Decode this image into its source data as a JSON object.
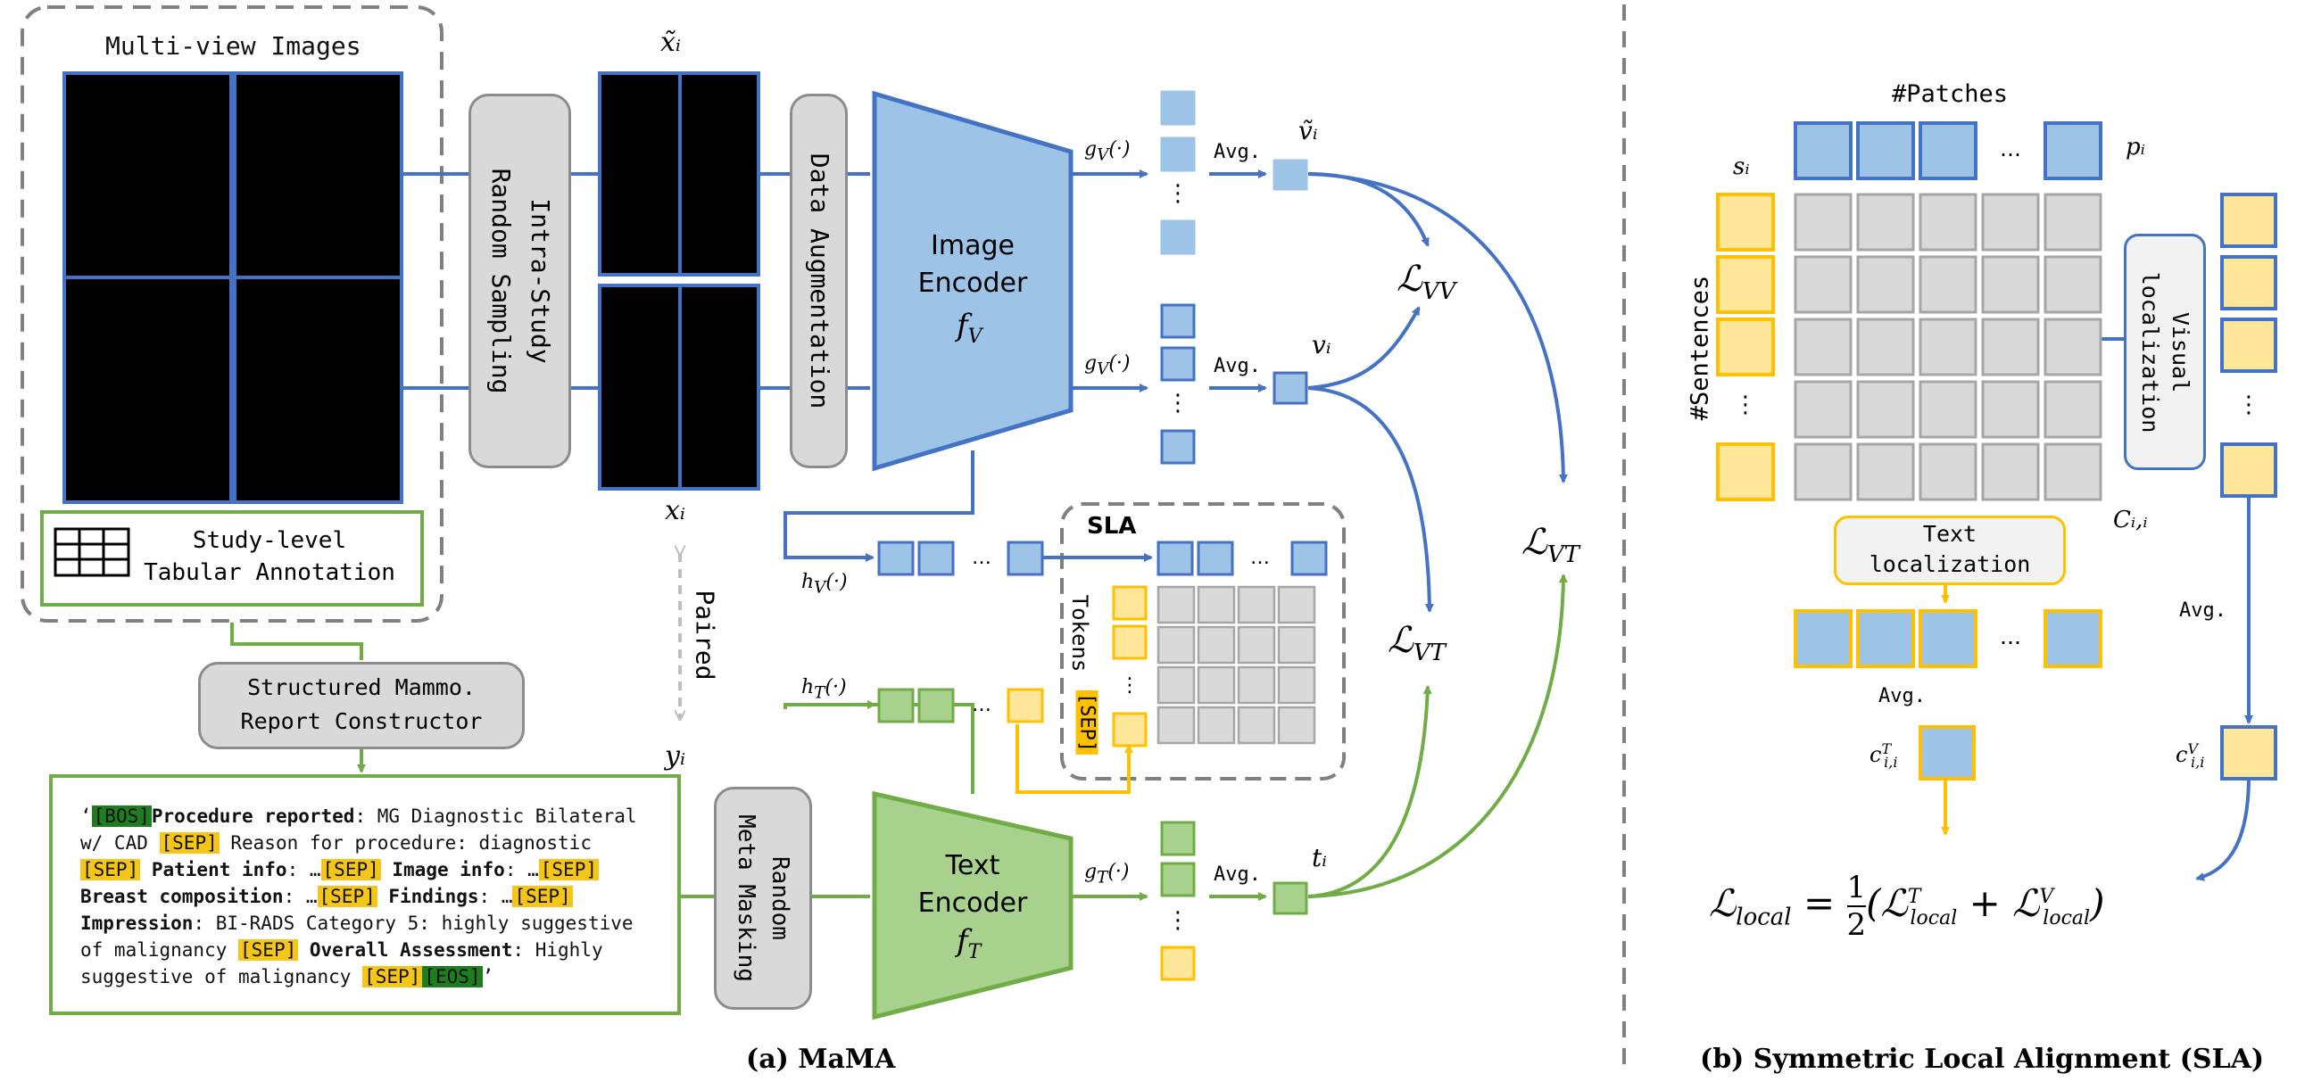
{
  "panel_a": {
    "caption": "(a) MaMA",
    "multiview_title": "Multi-view Images",
    "tabular": "Study-level\nTabular Annotation",
    "sampling": "Intra-Study\nRandom Sampling",
    "augmentation": "Data Augmentation",
    "image_encoder": "Image\nEncoder",
    "image_encoder_sym": "f_V",
    "text_encoder": "Text\nEncoder",
    "text_encoder_sym": "f_T",
    "constructor": "Structured Mammo.\nReport Constructor",
    "meta_masking": "Random\nMeta Masking",
    "paired": "Paired",
    "sla": "SLA",
    "tokens": "Tokens",
    "sep": "[SEP]",
    "x_tilde": "x̃ᵢ",
    "x": "xᵢ",
    "y": "yᵢ",
    "gv1": "g_V(·)",
    "gv2": "g_V(·)",
    "gt": "g_T(·)",
    "hv": "h_V(·)",
    "ht": "h_T(·)",
    "avg1": "Avg.",
    "avg2": "Avg.",
    "avg3": "Avg.",
    "v_tilde": "ṽᵢ",
    "v": "vᵢ",
    "t": "tᵢ",
    "ellipsis": "…",
    "vdots": "⋮",
    "l_vv": "VV",
    "l_vt": "VT",
    "l_vt2": "VT",
    "report_lines": [
      [
        [
          "q",
          "‘"
        ],
        [
          "bos",
          "[BOS]"
        ],
        [
          "b",
          "Procedure reported"
        ],
        [
          "t",
          ": MG Diagnostic Bilateral"
        ]
      ],
      [
        [
          "t",
          "w/ CAD "
        ],
        [
          "sep",
          "[SEP]"
        ],
        [
          "t",
          " Reason for procedure: diagnostic"
        ]
      ],
      [
        [
          "sep",
          "[SEP]"
        ],
        [
          "b",
          " Patient info"
        ],
        [
          "t",
          ": …"
        ],
        [
          "sep",
          "[SEP]"
        ],
        [
          "b",
          " Image info"
        ],
        [
          "t",
          ": …"
        ],
        [
          "sep",
          "[SEP]"
        ]
      ],
      [
        [
          "b",
          "Breast composition"
        ],
        [
          "t",
          ": …"
        ],
        [
          "sep",
          "[SEP]"
        ],
        [
          "b",
          " Findings"
        ],
        [
          "t",
          ": …"
        ],
        [
          "sep",
          "[SEP]"
        ]
      ],
      [
        [
          "b",
          "Impression"
        ],
        [
          "t",
          ": BI-RADS Category 5: highly suggestive"
        ]
      ],
      [
        [
          "t",
          "of malignancy "
        ],
        [
          "sep",
          "[SEP]"
        ],
        [
          "b",
          " Overall Assessment"
        ],
        [
          "t",
          ": Highly"
        ]
      ],
      [
        [
          "t",
          "suggestive of malignancy "
        ],
        [
          "sep",
          "[SEP]"
        ],
        [
          "bos",
          "[EOS]"
        ],
        [
          "q",
          "’"
        ]
      ]
    ]
  },
  "panel_b": {
    "caption": "(b) Symmetric Local Alignment (SLA)",
    "patches": "#Patches",
    "sentences": "#Sentences",
    "s": "sᵢ",
    "p": "pᵢ",
    "c": "Cᵢ,ᵢ",
    "visual_loc": "Visual\nlocalization",
    "text_loc": "Text\nlocalization",
    "avg_left": "Avg.",
    "avg_right": "Avg.",
    "ct": "cᵀᵢ,ᵢ",
    "cv": "cⱽᵢ,ᵢ",
    "ellipsis": "…",
    "vdots": "⋮",
    "loss_sub": "local",
    "loss_half": "1",
    "loss_two": "2"
  },
  "colors": {
    "blue": "#4472c4",
    "blue_fill": "#9dc3e6",
    "green": "#70ad47",
    "green_fill": "#a9d18e",
    "yellow": "#ffc000",
    "yellow_fill": "#ffe699",
    "gray": "#8c8c8c",
    "gray_fill": "#d9d9d9"
  }
}
